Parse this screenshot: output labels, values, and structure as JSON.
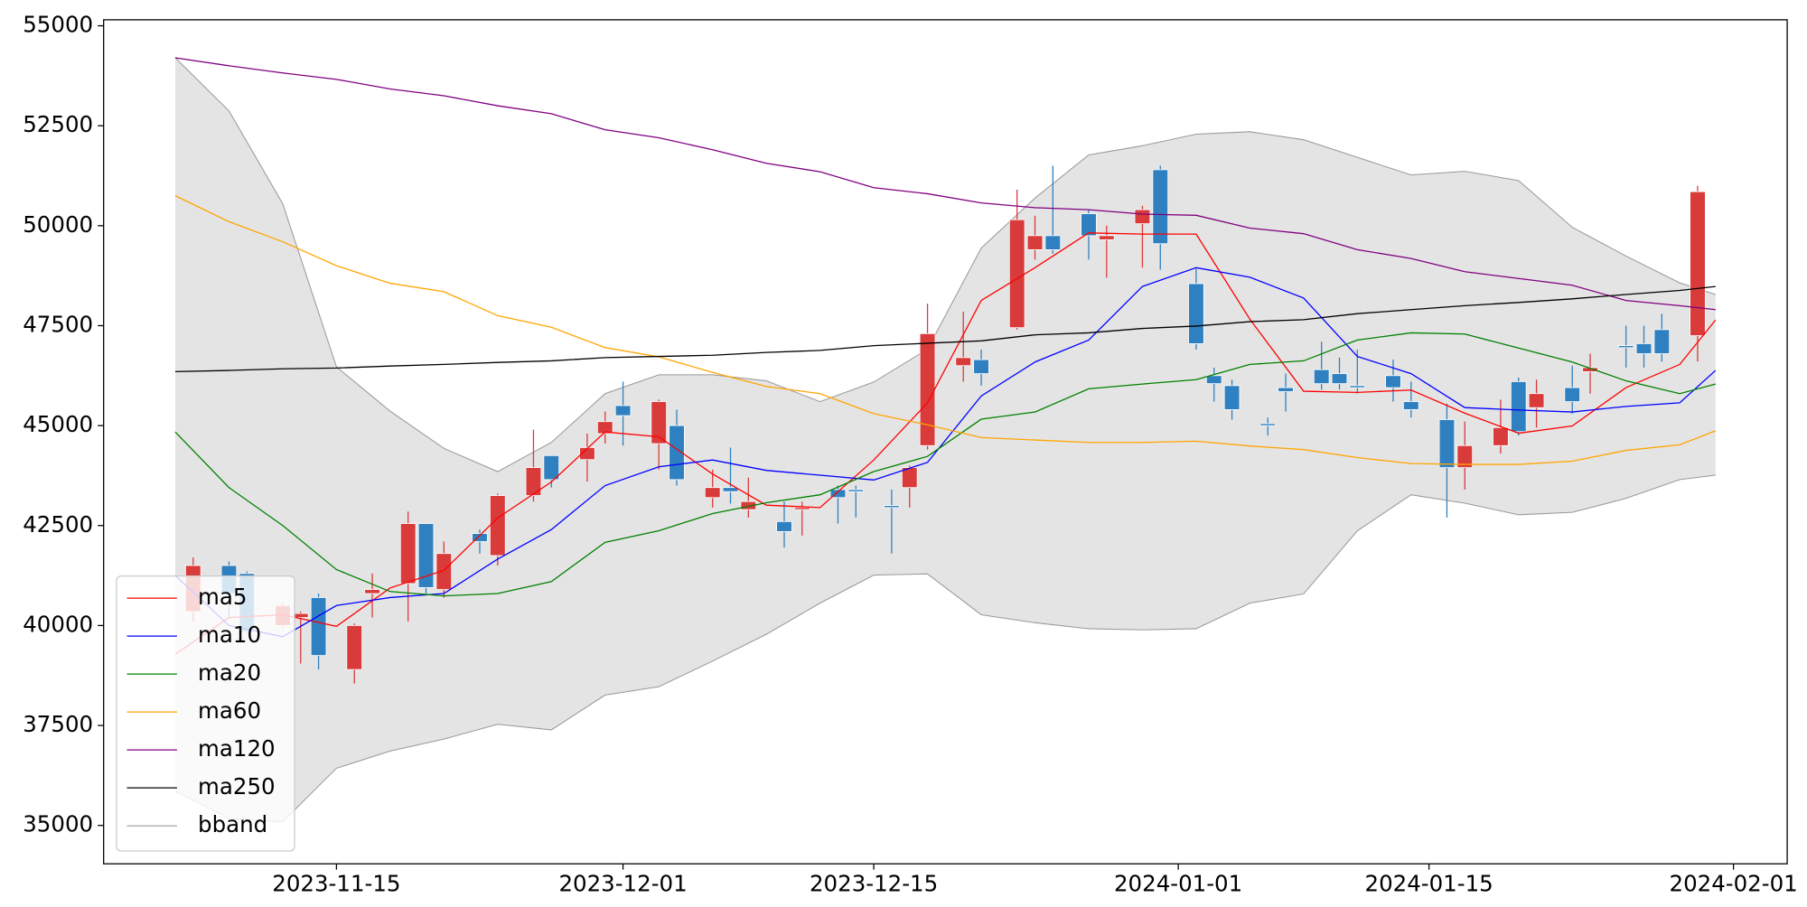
{
  "chart_data": {
    "type": "candlestick",
    "x": [
      "2023-11-07",
      "2023-11-09",
      "2023-11-10",
      "2023-11-12",
      "2023-11-13",
      "2023-11-14",
      "2023-11-16",
      "2023-11-17",
      "2023-11-19",
      "2023-11-20",
      "2023-11-21",
      "2023-11-23",
      "2023-11-24",
      "2023-11-26",
      "2023-11-27",
      "2023-11-29",
      "2023-11-30",
      "2023-12-01",
      "2023-12-03",
      "2023-12-04",
      "2023-12-06",
      "2023-12-07",
      "2023-12-08",
      "2023-12-10",
      "2023-12-11",
      "2023-12-13",
      "2023-12-14",
      "2023-12-16",
      "2023-12-17",
      "2023-12-18",
      "2023-12-20",
      "2023-12-21",
      "2023-12-23",
      "2023-12-24",
      "2023-12-25",
      "2023-12-27",
      "2023-12-28",
      "2023-12-30",
      "2023-12-31",
      "2024-01-02",
      "2024-01-03",
      "2024-01-04",
      "2024-01-06",
      "2024-01-07",
      "2024-01-09",
      "2024-01-10",
      "2024-01-11",
      "2024-01-13",
      "2024-01-14",
      "2024-01-16",
      "2024-01-17",
      "2024-01-19",
      "2024-01-20",
      "2024-01-21",
      "2024-01-23",
      "2024-01-24",
      "2024-01-26",
      "2024-01-27",
      "2024-01-28",
      "2024-01-30"
    ],
    "open": [
      40350,
      41500,
      41300,
      40000,
      40200,
      40700,
      38900,
      40800,
      41050,
      42550,
      40900,
      42300,
      41750,
      43250,
      44250,
      44150,
      44800,
      45500,
      44550,
      45000,
      43200,
      43450,
      42900,
      42600,
      42900,
      43400,
      43400,
      43000,
      43450,
      44500,
      46500,
      46650,
      47450,
      49400,
      49750,
      50300,
      49650,
      50050,
      51400,
      48550,
      46250,
      46000,
      45050,
      45950,
      46400,
      46300,
      46000,
      46250,
      45600,
      45150,
      43950,
      44500,
      46100,
      45450,
      45950,
      46350,
      47000,
      47050,
      47400,
      47250
    ],
    "high": [
      41700,
      41600,
      41350,
      40550,
      40350,
      40800,
      40050,
      41300,
      42850,
      42550,
      42100,
      42400,
      43300,
      44900,
      44250,
      44800,
      45350,
      46100,
      45650,
      45400,
      43900,
      44450,
      43700,
      43100,
      43100,
      43500,
      43500,
      43400,
      44000,
      48050,
      47850,
      46900,
      50900,
      50250,
      51500,
      50400,
      50000,
      50500,
      51500,
      48950,
      46450,
      46150,
      45200,
      46300,
      47100,
      46700,
      46900,
      46650,
      46100,
      45550,
      45100,
      45650,
      46200,
      46150,
      46500,
      46800,
      47500,
      47500,
      47800,
      51000
    ],
    "low": [
      40100,
      40200,
      39800,
      39950,
      39050,
      38900,
      38550,
      40200,
      40100,
      40800,
      40700,
      41800,
      41500,
      43100,
      43450,
      43600,
      44550,
      44500,
      43900,
      43500,
      42950,
      43050,
      42700,
      41950,
      42250,
      42550,
      42700,
      41800,
      42950,
      44400,
      46100,
      46000,
      47400,
      49150,
      49300,
      49150,
      48700,
      48950,
      48900,
      46900,
      45600,
      45150,
      44750,
      45350,
      45900,
      45900,
      45800,
      45600,
      45200,
      42700,
      43400,
      44300,
      44750,
      44950,
      45300,
      45800,
      46450,
      46450,
      46600,
      46600
    ],
    "close": [
      41500,
      40800,
      39850,
      40500,
      40300,
      39250,
      40000,
      40900,
      42550,
      40950,
      41800,
      42100,
      43250,
      43950,
      43650,
      44450,
      45100,
      45250,
      45600,
      43650,
      43450,
      43350,
      43100,
      42350,
      42950,
      43200,
      43350,
      42950,
      43950,
      47300,
      46700,
      46300,
      50150,
      49750,
      49400,
      49750,
      49750,
      50400,
      49550,
      47050,
      46050,
      45400,
      45000,
      45850,
      46050,
      46050,
      45950,
      45950,
      45400,
      43950,
      44500,
      44950,
      44850,
      45800,
      45600,
      46450,
      46950,
      46800,
      46800,
      50850
    ],
    "up_color": "#d93a3a",
    "down_color": "#2f80c0",
    "lines": {
      "x": [
        "2023-11-06",
        "2023-11-09",
        "2023-11-12",
        "2023-11-15",
        "2023-11-18",
        "2023-11-21",
        "2023-11-24",
        "2023-11-27",
        "2023-11-30",
        "2023-12-03",
        "2023-12-06",
        "2023-12-09",
        "2023-12-12",
        "2023-12-15",
        "2023-12-18",
        "2023-12-21",
        "2023-12-24",
        "2023-12-27",
        "2023-12-30",
        "2024-01-02",
        "2024-01-05",
        "2024-01-08",
        "2024-01-11",
        "2024-01-14",
        "2024-01-17",
        "2024-01-20",
        "2024-01-23",
        "2024-01-26",
        "2024-01-29",
        "2024-01-31"
      ],
      "series": [
        {
          "name": "ma5",
          "color": "#ff0000",
          "values": [
            39280,
            40200,
            40270,
            39980,
            40940,
            41380,
            42690,
            43590,
            44840,
            44720,
            43790,
            43010,
            42950,
            44140,
            45570,
            48130,
            48950,
            49820,
            49790,
            49790,
            47660,
            45860,
            45830,
            45890,
            45310,
            44810,
            44990,
            45950,
            46530,
            47640
          ]
        },
        {
          "name": "ma10",
          "color": "#0000ff",
          "values": [
            41250,
            40000,
            39720,
            40500,
            40700,
            40800,
            41660,
            42400,
            43500,
            43970,
            44140,
            43880,
            43760,
            43640,
            44080,
            45740,
            46590,
            47140,
            48480,
            48950,
            48710,
            48190,
            46730,
            46300,
            45450,
            45390,
            45340,
            45480,
            45570,
            46380
          ]
        },
        {
          "name": "ma20",
          "color": "#008000",
          "values": [
            44840,
            43450,
            42500,
            41400,
            40850,
            40740,
            40800,
            41100,
            42080,
            42370,
            42800,
            43070,
            43270,
            43850,
            44230,
            45160,
            45340,
            45920,
            46040,
            46150,
            46530,
            46620,
            47140,
            47320,
            47290,
            46940,
            46590,
            46120,
            45800,
            46040
          ]
        },
        {
          "name": "ma60",
          "color": "#ffa500",
          "values": [
            50750,
            50100,
            49600,
            49000,
            48560,
            48350,
            47750,
            47460,
            46950,
            46720,
            46330,
            45980,
            45800,
            45300,
            45020,
            44700,
            44640,
            44580,
            44580,
            44610,
            44490,
            44400,
            44200,
            44050,
            44030,
            44030,
            44110,
            44380,
            44520,
            44870
          ]
        },
        {
          "name": "ma120",
          "color": "#800080",
          "values": [
            54200,
            54000,
            53820,
            53660,
            53420,
            53250,
            53000,
            52800,
            52400,
            52200,
            51900,
            51560,
            51350,
            50950,
            50800,
            50570,
            50450,
            50400,
            50290,
            50260,
            49940,
            49800,
            49400,
            49180,
            48850,
            48680,
            48510,
            48130,
            48000,
            47900
          ]
        },
        {
          "name": "ma250",
          "color": "#000000",
          "values": [
            46350,
            46380,
            46420,
            46440,
            46490,
            46530,
            46580,
            46620,
            46700,
            46730,
            46760,
            46830,
            46880,
            47000,
            47060,
            47120,
            47270,
            47320,
            47430,
            47490,
            47600,
            47650,
            47800,
            47900,
            48000,
            48080,
            48170,
            48280,
            48380,
            48480
          ]
        }
      ]
    },
    "bband": {
      "name": "bband",
      "color": "#999999",
      "fill": "#e4e4e4",
      "upper": [
        54200,
        52870,
        50550,
        46470,
        45360,
        44430,
        43850,
        44580,
        45800,
        46270,
        46270,
        46120,
        45600,
        46090,
        46910,
        49440,
        50690,
        51770,
        52000,
        52290,
        52350,
        52150,
        51710,
        51270,
        51360,
        51130,
        49960,
        49240,
        48570,
        48280
      ],
      "lower": [
        35850,
        35180,
        35090,
        36430,
        36860,
        37160,
        37530,
        37390,
        38260,
        38470,
        39110,
        39780,
        40560,
        41260,
        41290,
        40270,
        40070,
        39920,
        39890,
        39920,
        40560,
        40790,
        42370,
        43270,
        43060,
        42770,
        42830,
        43180,
        43650,
        43760
      ]
    },
    "xlim": [
      "2023-11-02",
      "2024-02-04"
    ],
    "xticks": [
      "2023-11-15",
      "2023-12-01",
      "2023-12-15",
      "2024-01-01",
      "2024-01-15",
      "2024-02-01"
    ],
    "ylim": [
      34040,
      55150
    ],
    "yticks": [
      35000,
      37500,
      40000,
      42500,
      45000,
      47500,
      50000,
      52500,
      55000
    ],
    "legend": "lower left"
  }
}
